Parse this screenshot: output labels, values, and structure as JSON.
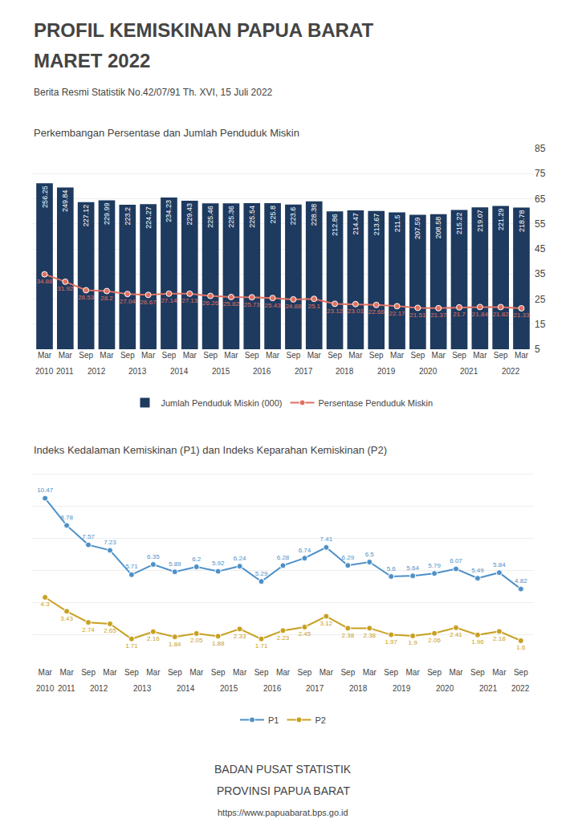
{
  "title": [
    "PROFIL KEMISKINAN PAPUA BARAT",
    "MARET 2022"
  ],
  "subtitle": "Berita Resmi Statistik No.42/07/91 Th. XVI, 15 Juli 2022",
  "annotations": [
    "BADAN PUSAT STATISTIK",
    "PROVINSI PAPUA BARAT",
    "https://www.papuabarat.bps.go.id"
  ],
  "chart_data": [
    {
      "type": "bar",
      "title": "Perkembangan Persentase dan Jumlah Penduduk Miskin",
      "categories": [
        "Mar",
        "Mar",
        "Sep",
        "Mar",
        "Sep",
        "Mar",
        "Sep",
        "Mar",
        "Sep",
        "Mar",
        "Sep",
        "Mar",
        "Sep",
        "Mar",
        "Sep",
        "Mar",
        "Sep",
        "Mar",
        "Sep",
        "Mar",
        "Sep",
        "Mar",
        "Sep",
        "Mar"
      ],
      "category_groups": [
        "2010",
        "2011",
        "2012",
        "2012",
        "2013",
        "2013",
        "2014",
        "2014",
        "2015",
        "2015",
        "2016",
        "2016",
        "2017",
        "2017",
        "2018",
        "2018",
        "2019",
        "2019",
        "2020",
        "2020",
        "2021",
        "2021",
        "2022",
        "2022"
      ],
      "series": [
        {
          "name": "Jumlah Penduduk Miskin (000)",
          "type": "bar",
          "color": "#1e3a5f",
          "values": [
            256.25,
            249.84,
            227.12,
            229.99,
            223.2,
            224.27,
            234.23,
            229.43,
            225.46,
            225.36,
            225.54,
            225.8,
            223.6,
            228.38,
            212.86,
            214.47,
            213.67,
            211.5,
            207.59,
            208.58,
            215.22,
            219.07,
            221.29,
            218.78
          ]
        },
        {
          "name": "Persentase Penduduk Miskin",
          "type": "line",
          "axis": "y2",
          "color": "#e07060",
          "marker": "circle",
          "values": [
            34.88,
            31.92,
            28.53,
            28.2,
            27.04,
            26.67,
            27.14,
            27.13,
            26.26,
            25.82,
            25.73,
            25.43,
            24.88,
            25.1,
            23.12,
            23.01,
            22.66,
            22.17,
            21.51,
            21.37,
            21.7,
            21.84,
            21.82,
            21.33
          ]
        }
      ],
      "ylim": [
        0,
        310
      ],
      "yticks": [],
      "y2lim": [
        5,
        85
      ],
      "y2ticks": [
        5,
        15,
        25,
        35,
        45,
        55,
        65,
        75,
        85
      ],
      "grid": true,
      "data_labels": true,
      "legend": "bottom"
    },
    {
      "type": "line",
      "title": "Indeks Kedalaman Kemiskinan (P1) dan Indeks Keparahan Kemiskinan (P2)",
      "categories": [
        "Mar",
        "Mar",
        "Sep",
        "Mar",
        "Sep",
        "Mar",
        "Sep",
        "Mar",
        "Sep",
        "Mar",
        "Sep",
        "Mar",
        "Sep",
        "Mar",
        "Sep",
        "Mar",
        "Sep",
        "Mar",
        "Sep",
        "Mar",
        "Sep",
        "Mar",
        "Sep"
      ],
      "category_groups": [
        "2010",
        "2011",
        "2012",
        "2012",
        "2013",
        "2013",
        "2014",
        "2014",
        "2015",
        "2015",
        "2016",
        "2016",
        "2017",
        "2017",
        "2018",
        "2018",
        "2019",
        "2019",
        "2020",
        "2020",
        "2021",
        "2021",
        "2022"
      ],
      "series": [
        {
          "name": "P1",
          "color": "#4d90c8",
          "marker": "circle",
          "values": [
            10.47,
            8.78,
            7.57,
            7.23,
            5.71,
            6.35,
            5.89,
            6.2,
            5.92,
            6.24,
            5.29,
            6.28,
            6.74,
            7.41,
            6.29,
            6.5,
            5.6,
            5.64,
            5.79,
            6.07,
            5.49,
            5.84,
            4.82
          ]
        },
        {
          "name": "P2",
          "color": "#c8a020",
          "marker": "circle",
          "values": [
            4.3,
            3.43,
            2.74,
            2.65,
            1.71,
            2.16,
            1.84,
            2.05,
            1.88,
            2.33,
            1.71,
            2.23,
            2.45,
            3.12,
            2.38,
            2.38,
            1.97,
            1.9,
            2.06,
            2.41,
            1.96,
            2.18,
            1.6
          ]
        }
      ],
      "ylim": [
        0,
        12.5
      ],
      "yticks": [
        2,
        4,
        6,
        8,
        10,
        12
      ],
      "grid": true,
      "tick_labels": "x",
      "data_labels": true,
      "legend": "bottom"
    }
  ]
}
